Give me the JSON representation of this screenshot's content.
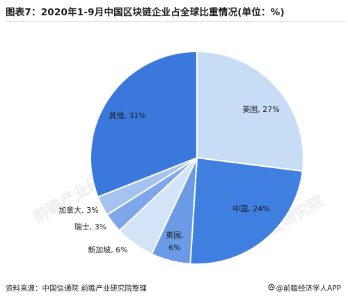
{
  "header": {
    "title": "图表7：2020年1-9月中国区块链企业占全球比重情况(单位：%)"
  },
  "watermark": {
    "text": "前瞻产业研究院"
  },
  "footer": {
    "source": "资料来源：中国信通院 前瞻产业研究院整理",
    "brand": "@前瞻经济学人APP"
  },
  "chart_data": {
    "type": "pie",
    "title": "2020年1-9月中国区块链企业占全球比重情况(单位：%)",
    "unit": "%",
    "slices": [
      {
        "label": "美国",
        "value": 27,
        "display": "美国, 27%",
        "color": "#c7dcf5"
      },
      {
        "label": "中国",
        "value": 24,
        "display": "中国, 24%",
        "color": "#3f7fdf"
      },
      {
        "label": "英国",
        "value": 6,
        "display": "英国,",
        "display2": "6%",
        "color": "#6b9ae6"
      },
      {
        "label": "新加坡",
        "value": 6,
        "display": "新加坡, 6%",
        "color": "#d3e3f8"
      },
      {
        "label": "瑞士",
        "value": 3,
        "display": "瑞士, 3%",
        "color": "#7ea7e9"
      },
      {
        "label": "加拿大",
        "value": 3,
        "display": "加拿大, 3%",
        "color": "#a6c3f0"
      },
      {
        "label": "其他",
        "value": 31,
        "display": "其他, 31%",
        "color": "#3a78dc"
      }
    ]
  }
}
